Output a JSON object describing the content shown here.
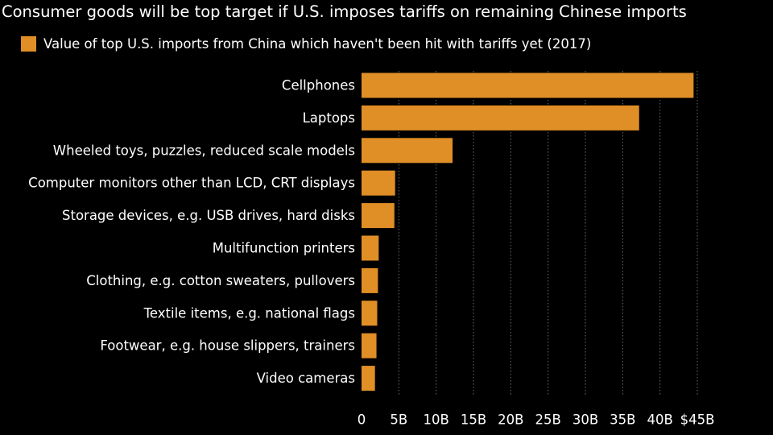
{
  "header": {
    "title": "Consumer goods will be top target if U.S. imposes tariffs on remaining Chinese imports",
    "legend_label": "Value of top U.S. imports from China which haven't been hit with tariffs yet (2017)"
  },
  "colors": {
    "background": "#000000",
    "bar": "#e08e26",
    "gridline": "#6e6e6e",
    "text": "#ffffff"
  },
  "chart_data": {
    "type": "bar",
    "orientation": "horizontal",
    "title": "Consumer goods will be top target if U.S. imposes tariffs on remaining Chinese imports",
    "legend": [
      "Value of top U.S. imports from China which haven't been hit with tariffs yet (2017)"
    ],
    "legend_position": "top-left",
    "xlabel": "",
    "ylabel": "",
    "xlim": [
      0,
      45
    ],
    "grid": true,
    "categories": [
      "Cellphones",
      "Laptops",
      "Wheeled toys, puzzles, reduced scale models",
      "Computer monitors other than LCD, CRT displays",
      "Storage devices, e.g. USB drives, hard disks",
      "Multifunction printers",
      "Clothing, e.g. cotton sweaters, pullovers",
      "Textile items, e.g. national flags",
      "Footwear, e.g. house slippers, trainers",
      "Video cameras"
    ],
    "values": [
      44.5,
      37.2,
      12.2,
      4.5,
      4.4,
      2.3,
      2.2,
      2.1,
      2.0,
      1.8
    ],
    "units": "billion USD",
    "x_ticks": [
      0,
      5,
      10,
      15,
      20,
      25,
      30,
      35,
      40,
      45
    ],
    "x_tick_labels": [
      "0",
      "5B",
      "10B",
      "15B",
      "20B",
      "25B",
      "30B",
      "35B",
      "40B",
      "$45B"
    ]
  }
}
